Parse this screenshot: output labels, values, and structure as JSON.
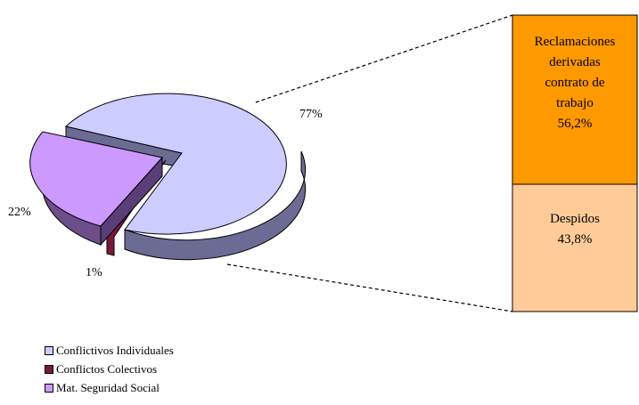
{
  "chart_data": {
    "type": "pie-of-bar",
    "pie": {
      "slices": [
        {
          "name": "Conflictivos Individuales",
          "percent": 77,
          "label": "77%",
          "color": "#ccccff"
        },
        {
          "name": "Conflictos Colectivos",
          "percent": 1,
          "label": "1%",
          "color": "#7a1a3a"
        },
        {
          "name": "Mat. Seguridad Social",
          "percent": 22,
          "label": "22%",
          "color": "#cc99ff"
        }
      ]
    },
    "bar": {
      "breakdown_of": "Conflictivos Individuales",
      "segments": [
        {
          "lines": [
            "Reclamaciones",
            "derivadas",
            "contrato de",
            "trabajo",
            "56,2%"
          ],
          "percent": 56.2,
          "color": "#ff9900"
        },
        {
          "lines": [
            "Despidos",
            "43,8%"
          ],
          "percent": 43.8,
          "color": "#ffcc99"
        }
      ]
    },
    "legend": {
      "placement": "bottom-left",
      "items": [
        {
          "label": "Conflictivos Individuales",
          "color": "#ccccff"
        },
        {
          "label": "Conflictos Colectivos",
          "color": "#7a1a3a"
        },
        {
          "label": "Mat. Seguridad Social",
          "color": "#cc99ff"
        }
      ]
    }
  }
}
